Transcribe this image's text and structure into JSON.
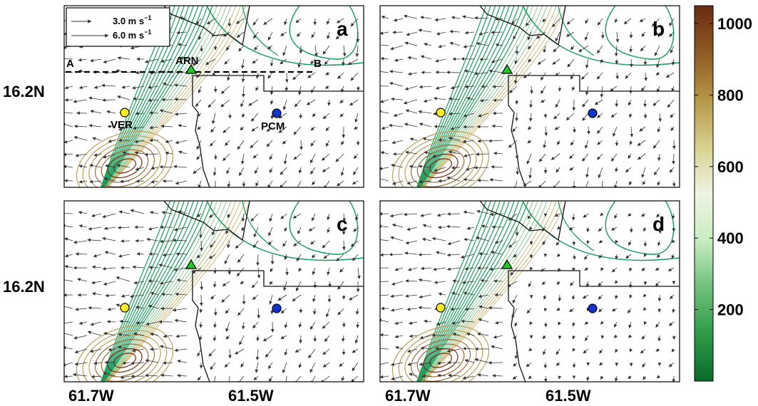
{
  "chart_data": {
    "type": "contour-vector-map",
    "panels": [
      {
        "label": "a",
        "show_station_labels": true,
        "show_legend": true,
        "show_section": true
      },
      {
        "label": "b",
        "show_station_labels": false,
        "show_legend": false,
        "show_section": false
      },
      {
        "label": "c",
        "show_station_labels": false,
        "show_legend": false,
        "show_section": false
      },
      {
        "label": "d",
        "show_station_labels": false,
        "show_legend": false,
        "show_section": false
      }
    ],
    "x_ticks": [
      "61.7W",
      "61.5W"
    ],
    "y_ticks": [
      "16.2N"
    ],
    "legend": {
      "vector_small": "3.0 m s",
      "vector_large": "6.0 m s",
      "unit_exponent": "−1",
      "vector_small_mps": 3.0,
      "vector_large_mps": 6.0
    },
    "section": {
      "start_label": "A",
      "end_label": "B"
    },
    "stations": [
      {
        "name": "VER",
        "marker": "circle",
        "color": "#ffee22",
        "lon": -61.74,
        "lat": 16.18
      },
      {
        "name": "PCM",
        "marker": "circle",
        "color": "#1133cc",
        "lon": -61.5,
        "lat": 16.18
      },
      {
        "name": "ARN",
        "marker": "triangle",
        "color": "#22cc22",
        "lon": -61.6,
        "lat": 16.23
      }
    ],
    "colorbar": {
      "ticks": [
        "200",
        "400",
        "600",
        "800",
        "1000"
      ],
      "tick_values": [
        200,
        400,
        600,
        800,
        1000
      ],
      "min": 0,
      "max": 1050,
      "colors": [
        "#0a6b2c",
        "#2f9a48",
        "#6fc07a",
        "#c9ecc4",
        "#eef4e2",
        "#d7d08e",
        "#b49746",
        "#8e5a24",
        "#6b2a12"
      ]
    },
    "axis_colors": {
      "coastline": "#111111",
      "contour_low": "#129a5a",
      "contour_high": "#7a2a0e"
    }
  }
}
